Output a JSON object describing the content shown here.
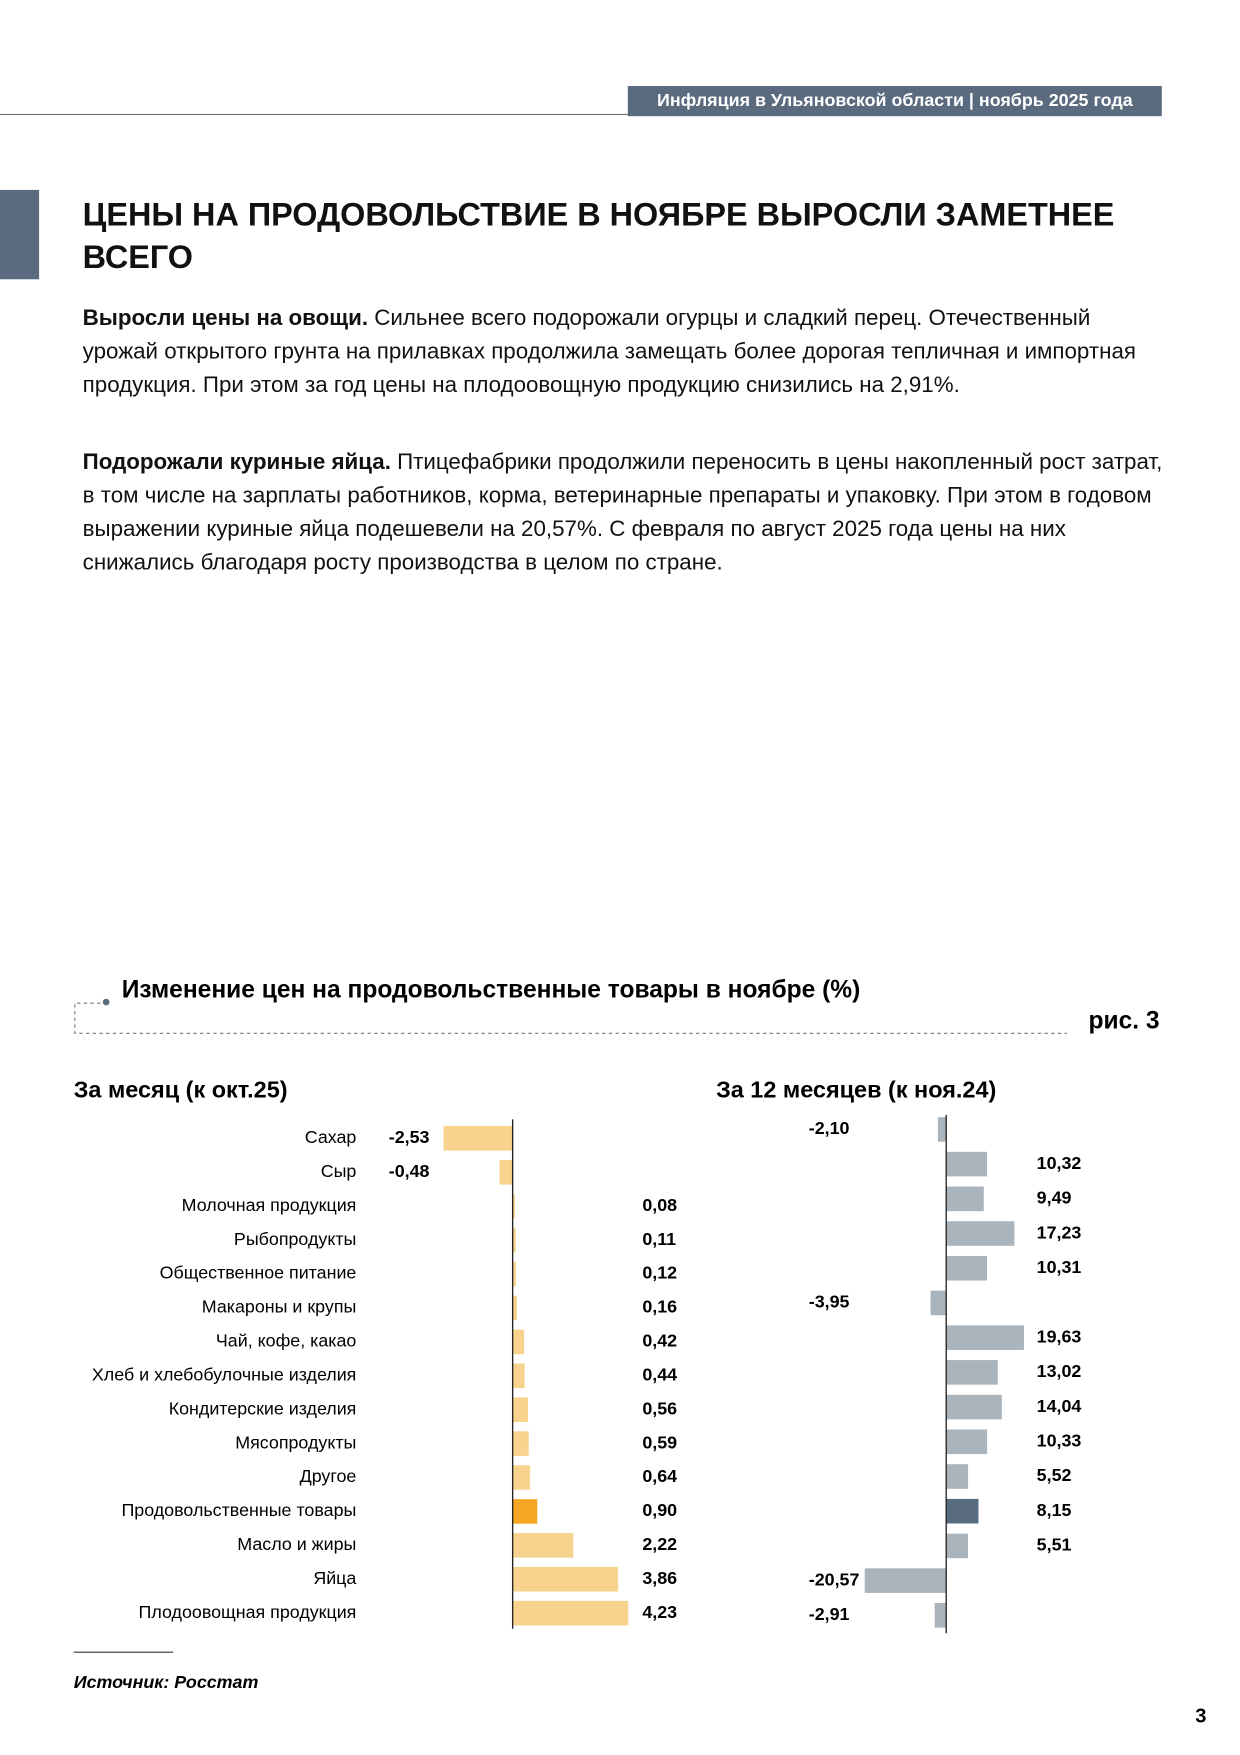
{
  "header": {
    "title": "Инфляция в Ульяновской области | ноябрь 2025 года"
  },
  "title": "ЦЕНЫ НА ПРОДОВОЛЬСТВИЕ В НОЯБРЕ ВЫРОСЛИ ЗАМЕТНЕЕ ВСЕГО",
  "paragraphs": [
    {
      "lead": "Выросли цены на овощи.",
      "text": " Сильнее всего подорожали огурцы и сладкий перец. Отечественный урожай открытого грунта на прилавках продолжила замещать более дорогая тепличная и импортная продукция. При этом за год цены на плодоовощную продукцию снизились на 2,91%."
    },
    {
      "lead": "Подорожали куриные яйца.",
      "text": " Птицефабрики продолжили переносить в цены накопленный рост затрат, в том числе на зарплаты работников, корма, ветеринарные препараты и упаковку. При этом в годовом выражении куриные яйца подешевели на 20,57%. С февраля по август 2025 года цены на них снижались благодаря росту производства в целом по стране."
    }
  ],
  "figure": {
    "title": "Изменение цен на продовольственные товары в ноябре (%)",
    "label": "рис. 3"
  },
  "chart_data": [
    {
      "type": "bar",
      "orientation": "horizontal",
      "subtitle": "За месяц (к окт.25)",
      "categories": [
        "Сахар",
        "Сыр",
        "Молочная продукция",
        "Рыбопродукты",
        "Общественное питание",
        "Макароны и крупы",
        "Чай, кофе, какао",
        "Хлеб и хлебобулочные изделия",
        "Кондитерские изделия",
        "Мясопродукты",
        "Другое",
        "Продовольственные товары",
        "Масло и жиры",
        "Яйца",
        "Плодоовощная продукция"
      ],
      "values": [
        -2.53,
        -0.48,
        0.08,
        0.11,
        0.12,
        0.16,
        0.42,
        0.44,
        0.56,
        0.59,
        0.64,
        0.9,
        2.22,
        3.86,
        4.23
      ],
      "value_labels": [
        "-2,53",
        "-0,48",
        "0,08",
        "0,11",
        "0,12",
        "0,16",
        "0,42",
        "0,44",
        "0,56",
        "0,59",
        "0,64",
        "0,90",
        "2,22",
        "3,86",
        "4,23"
      ],
      "colors": [
        "#f8d38e",
        "#f8d38e",
        "#f8d38e",
        "#f8d38e",
        "#f8d38e",
        "#f8d38e",
        "#f8d38e",
        "#f8d38e",
        "#f8d38e",
        "#f8d38e",
        "#f8d38e",
        "#f5a623",
        "#f8d38e",
        "#f8d38e",
        "#f8d38e"
      ],
      "xlim": [
        -3,
        4.5
      ]
    },
    {
      "type": "bar",
      "orientation": "horizontal",
      "subtitle": "За 12 месяцев (к ноя.24)",
      "values": [
        -2.1,
        10.32,
        9.49,
        17.23,
        10.31,
        -3.95,
        19.63,
        13.02,
        14.04,
        10.33,
        5.52,
        8.15,
        5.51,
        -20.57,
        -2.91
      ],
      "value_labels": [
        "-2,10",
        "10,32",
        "9,49",
        "17,23",
        "10,31",
        "-3,95",
        "19,63",
        "13,02",
        "14,04",
        "10,33",
        "5,52",
        "8,15",
        "5,51",
        "-20,57",
        "-2,91"
      ],
      "colors": [
        "#aab4bd",
        "#aab4bd",
        "#aab4bd",
        "#aab4bd",
        "#aab4bd",
        "#aab4bd",
        "#aab4bd",
        "#aab4bd",
        "#aab4bd",
        "#aab4bd",
        "#aab4bd",
        "#596b81",
        "#aab4bd",
        "#aab4bd",
        "#aab4bd"
      ],
      "xlim": [
        -22,
        22
      ]
    }
  ],
  "source": "Источник: Росстат",
  "page_number": "3"
}
